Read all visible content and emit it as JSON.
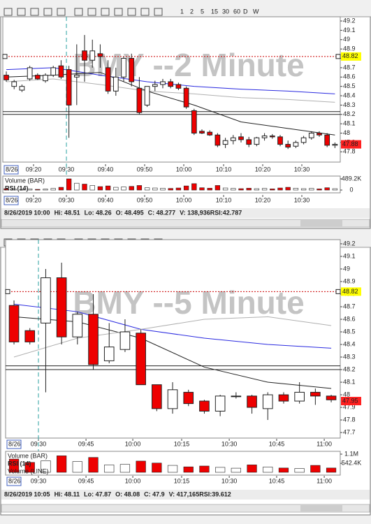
{
  "toolbar": {
    "timeframes": [
      "1",
      "2",
      "5",
      "15",
      "30",
      "60",
      "D",
      "W"
    ]
  },
  "chart_data": [
    {
      "type": "candlestick",
      "title": "BMY --2 Minute",
      "date_label": "8/26",
      "up_color": "#ffffff",
      "down_color": "#ee0000",
      "open": [
        48.62,
        48.5,
        48.46,
        48.58,
        48.62,
        48.56,
        48.62,
        48.72,
        48.68,
        48.6,
        48.88,
        48.78,
        48.85,
        48.7,
        48.45,
        48.6,
        48.8,
        48.48,
        48.3,
        48.5,
        48.52,
        48.55,
        48.52,
        48.48,
        48.24,
        48.02,
        48.01,
        47.98,
        47.88,
        47.92,
        47.96,
        47.93,
        47.88,
        47.95,
        47.97,
        47.96,
        47.88,
        47.86,
        47.9,
        47.95,
        48.0,
        47.98,
        47.87
      ],
      "high": [
        48.66,
        48.57,
        48.52,
        48.72,
        48.64,
        48.64,
        48.72,
        48.78,
        48.72,
        48.95,
        49.05,
        49.0,
        48.95,
        48.78,
        48.7,
        48.82,
        48.85,
        48.6,
        48.5,
        48.56,
        48.58,
        48.58,
        48.54,
        48.5,
        48.26,
        48.04,
        48.03,
        48.0,
        47.95,
        47.98,
        48.0,
        47.96,
        47.96,
        48.0,
        47.99,
        47.98,
        47.92,
        47.92,
        47.97,
        48.02,
        48.02,
        48.0,
        47.9
      ],
      "low": [
        48.55,
        48.47,
        48.44,
        48.56,
        48.57,
        48.54,
        48.6,
        48.58,
        47.95,
        48.3,
        48.55,
        48.7,
        48.7,
        48.42,
        48.4,
        48.55,
        48.5,
        48.2,
        48.28,
        48.45,
        48.48,
        48.48,
        48.46,
        48.26,
        47.98,
        47.99,
        47.97,
        47.85,
        47.84,
        47.88,
        47.9,
        47.85,
        47.86,
        47.92,
        47.94,
        47.86,
        47.83,
        47.84,
        47.88,
        47.93,
        47.96,
        47.85,
        47.84
      ],
      "close": [
        48.57,
        48.55,
        48.5,
        48.7,
        48.58,
        48.62,
        48.7,
        48.6,
        48.3,
        48.62,
        48.78,
        48.88,
        48.82,
        48.45,
        48.6,
        48.8,
        48.55,
        48.22,
        48.5,
        48.52,
        48.55,
        48.5,
        48.48,
        48.28,
        48.0,
        48.0,
        47.98,
        47.87,
        47.92,
        47.95,
        47.93,
        47.88,
        47.95,
        47.97,
        47.96,
        47.88,
        47.85,
        47.9,
        47.95,
        48.0,
        47.98,
        47.87,
        47.88
      ],
      "xlim": [
        -0.45,
        42.68
      ],
      "xticks": [
        {
          "value": 3.48,
          "label": "09:20"
        },
        {
          "value": 7.68,
          "label": "09:30"
        },
        {
          "value": 12.68,
          "label": "09:40"
        },
        {
          "value": 17.68,
          "label": "09:50"
        },
        {
          "value": 22.68,
          "label": "10:00"
        },
        {
          "value": 27.77,
          "label": "10:10"
        },
        {
          "value": 32.77,
          "label": "10:20"
        },
        {
          "value": 37.77,
          "label": "10:30"
        }
      ],
      "ylim": [
        47.69,
        49.245
      ],
      "yticks": [
        49.2,
        49.1,
        49,
        48.9,
        48.8,
        48.7,
        48.6,
        48.5,
        48.4,
        48.3,
        48.2,
        48.1,
        48,
        47.9,
        47.8
      ],
      "lines": [
        {
          "color": "#2a2ae0",
          "x": [
            0,
            6,
            12,
            18,
            24,
            30,
            36,
            42
          ],
          "values": [
            48.68,
            48.7,
            48.62,
            48.55,
            48.5,
            48.47,
            48.45,
            48.42
          ]
        },
        {
          "color": "#222222",
          "x": [
            0,
            6,
            12,
            18,
            24,
            30,
            36,
            42
          ],
          "values": [
            48.6,
            48.62,
            48.65,
            48.45,
            48.3,
            48.12,
            48.05,
            47.98
          ]
        },
        {
          "color": "#b0b0b0",
          "x": [
            0,
            6,
            12,
            18,
            24,
            30,
            36,
            42
          ],
          "values": [
            48.55,
            48.58,
            48.52,
            48.45,
            48.42,
            48.38,
            48.36,
            48.33
          ]
        }
      ],
      "hlines": [
        {
          "value": 48.82,
          "color": "#cc0000",
          "dash": true
        },
        {
          "value": 48.23,
          "color": "#222222"
        },
        {
          "value": 48.2,
          "color": "#222222"
        }
      ],
      "price_labels": [
        {
          "value": 48.82,
          "color": "#ffff00"
        },
        {
          "value": 47.88,
          "color": "#ff2020"
        }
      ],
      "volume": {
        "values": [
          60000,
          40000,
          30000,
          50000,
          30000,
          40000,
          70000,
          120000,
          489000,
          300000,
          260000,
          200000,
          150000,
          180000,
          120000,
          140000,
          160000,
          200000,
          100000,
          90000,
          80000,
          70000,
          90000,
          180000,
          280000,
          100000,
          80000,
          200000,
          90000,
          70000,
          60000,
          80000,
          60000,
          70000,
          50000,
          90000,
          120000,
          80000,
          60000,
          70000,
          50000,
          100000,
          60000
        ],
        "ylim": [
          0,
          489200
        ],
        "yticks": [
          {
            "value": 489200,
            "label": "489.2K"
          },
          0
        ]
      },
      "indicator_labels": [
        "Volume (BAR)",
        "RSI (14)"
      ],
      "status": [
        "8/26/2019 10:00",
        "Hi: 48.51",
        "Lo: 48.26",
        "O: 48.495",
        "C: 48.277",
        "V: 138,936RSI:42.787"
      ]
    },
    {
      "type": "candlestick",
      "title": "BMY --5 Minute",
      "date_label": "8/26",
      "up_color": "#ffffff",
      "down_color": "#ee0000",
      "open": [
        48.71,
        48.51,
        48.57,
        48.93,
        48.46,
        48.64,
        48.27,
        48.36,
        48.49,
        48.08,
        47.89,
        48.02,
        47.95,
        47.87,
        47.99,
        47.99,
        47.89,
        48.0,
        47.95,
        48.02,
        47.99
      ],
      "high": [
        48.75,
        48.53,
        49.0,
        49.05,
        48.66,
        48.8,
        48.57,
        48.6,
        48.52,
        48.08,
        48.1,
        48.04,
        47.96,
        48.0,
        48.02,
        48.0,
        48.02,
        48.02,
        48.1,
        48.05,
        48.0
      ],
      "low": [
        48.4,
        48.4,
        48.02,
        48.4,
        48.4,
        48.2,
        48.25,
        48.34,
        48.08,
        47.87,
        47.85,
        47.91,
        47.85,
        47.83,
        47.97,
        47.85,
        47.8,
        47.93,
        47.93,
        47.92,
        47.94
      ],
      "close": [
        48.42,
        48.42,
        48.93,
        48.46,
        48.64,
        48.24,
        48.38,
        48.5,
        48.08,
        47.89,
        48.04,
        47.93,
        47.87,
        47.99,
        47.99,
        47.9,
        48.0,
        47.95,
        48.02,
        47.99,
        47.96
      ],
      "xlim": [
        -0.53,
        20.57
      ],
      "xticks": [
        {
          "value": 1.54,
          "label": "09:30"
        },
        {
          "value": 4.54,
          "label": "09:45"
        },
        {
          "value": 7.49,
          "label": "10:00"
        },
        {
          "value": 10.57,
          "label": "10:15"
        },
        {
          "value": 13.57,
          "label": "10:30"
        },
        {
          "value": 16.56,
          "label": "10:45"
        },
        {
          "value": 19.56,
          "label": "11:00"
        }
      ],
      "ylim": [
        47.656,
        49.233
      ],
      "yticks": [
        49.2,
        49.1,
        49,
        48.9,
        48.8,
        48.7,
        48.6,
        48.5,
        48.4,
        48.3,
        48.2,
        48.1,
        48,
        47.9,
        47.8,
        47.7
      ],
      "lines": [
        {
          "color": "#2a2ae0",
          "x": [
            0,
            4,
            8,
            12,
            16,
            20
          ],
          "values": [
            48.72,
            48.66,
            48.52,
            48.45,
            48.4,
            48.37
          ]
        },
        {
          "color": "#222222",
          "x": [
            0,
            4,
            8,
            12,
            16,
            20
          ],
          "values": [
            48.62,
            48.58,
            48.45,
            48.22,
            48.1,
            48.05
          ]
        },
        {
          "color": "#b0b0b0",
          "x": [
            0,
            4,
            8,
            12,
            16,
            20
          ],
          "values": [
            48.3,
            48.45,
            48.52,
            48.6,
            48.62,
            48.55
          ]
        }
      ],
      "hlines": [
        {
          "value": 48.82,
          "color": "#cc0000",
          "dash": true
        },
        {
          "value": 48.23,
          "color": "#222222"
        },
        {
          "value": 48.2,
          "color": "#222222"
        }
      ],
      "price_labels": [
        {
          "value": 48.82,
          "color": "#ffff00"
        },
        {
          "value": 47.95,
          "color": "#ff2020"
        }
      ],
      "volume": {
        "values": [
          800000,
          600000,
          700000,
          1000000,
          650000,
          900000,
          450000,
          480000,
          680000,
          560000,
          420000,
          330000,
          380000,
          300000,
          250000,
          450000,
          320000,
          260000,
          230000,
          420000,
          260000
        ],
        "ylim": [
          0,
          1100000
        ],
        "yticks": [
          {
            "value": 1100000,
            "label": "1.1M"
          },
          {
            "value": 542400,
            "label": "542.4K"
          }
        ]
      },
      "indicator_labels": [
        "Volume (BAR)",
        "RSI (14)",
        "Volume (LINE)"
      ],
      "status": [
        "8/26/2019 10:05",
        "Hi: 48.11",
        "Lo: 47.87",
        "O: 48.08",
        "C: 47.9",
        "V: 417,165RSI:39.612"
      ]
    }
  ]
}
